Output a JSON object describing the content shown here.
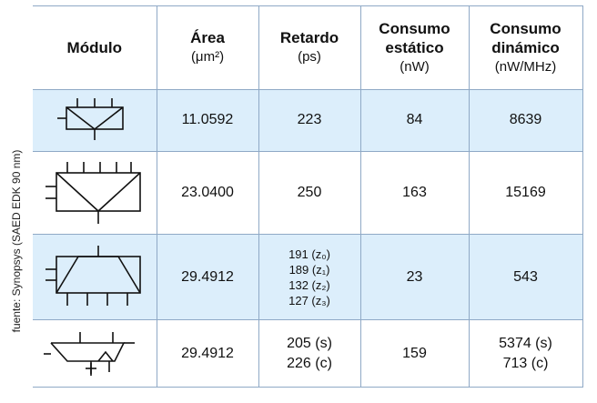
{
  "source_note": "fuente: Synopsys (SAED EDK 90 nm)",
  "headers": {
    "modulo": "Módulo",
    "area": "Área",
    "area_unit": "(μm²)",
    "retardo": "Retardo",
    "retardo_unit": "(ps)",
    "estatico_1": "Consumo",
    "estatico_2": "estático",
    "estatico_unit": "(nW)",
    "dinamico_1": "Consumo",
    "dinamico_2": "dinámico",
    "dinamico_unit": "(nW/MHz)"
  },
  "rows": [
    {
      "icon": "triangle-module-icon",
      "area": "11.0592",
      "retardo": "223",
      "estatico": "84",
      "dinamico": "8639"
    },
    {
      "icon": "wide-triangle-module-icon",
      "area": "23.0400",
      "retardo": "250",
      "estatico": "163",
      "dinamico": "15169"
    },
    {
      "icon": "trapezoid-module-icon",
      "area": "29.4912",
      "retardo_lines": [
        "191 (z₀)",
        "189 (z₁)",
        "132 (z₂)",
        "127 (z₃)"
      ],
      "estatico": "23",
      "dinamico": "543"
    },
    {
      "icon": "adder-module-icon",
      "area": "29.4912",
      "retardo_lines": [
        "205 (s)",
        "226 (c)"
      ],
      "estatico": "159",
      "dinamico_lines": [
        "5374 (s)",
        "713 (c)"
      ]
    }
  ]
}
